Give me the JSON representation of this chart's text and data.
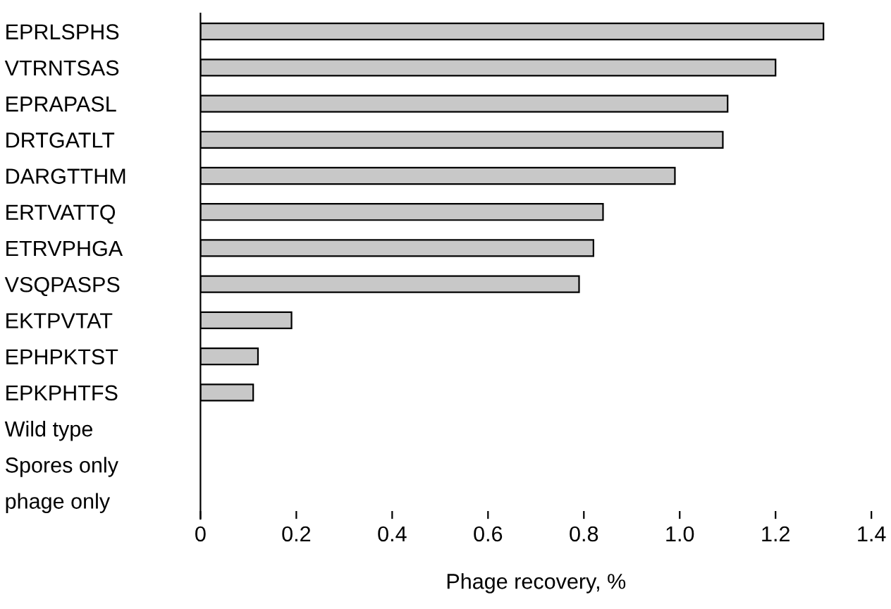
{
  "chart_data": {
    "type": "bar",
    "orientation": "horizontal",
    "xlabel": "Phage recovery, %",
    "categories": [
      "EPRLSPHS",
      "VTRNTSAS",
      "EPRAPASL",
      "DRTGATLT",
      "DARGTTHM",
      "ERTVATTQ",
      "ETRVPHGA",
      "VSQPASPS",
      "EKTPVTAT",
      "EPHPKTST",
      "EPKPHTFS",
      "Wild type",
      "Spores only",
      "phage only"
    ],
    "values": [
      1.3,
      1.2,
      1.1,
      1.09,
      0.99,
      0.84,
      0.82,
      0.79,
      0.19,
      0.12,
      0.11,
      0,
      0,
      0
    ],
    "color": "#c8c8c8",
    "xlim": [
      0,
      1.4
    ],
    "xticks": [
      0,
      {
        "value": 0.2,
        "label": "0.2"
      },
      {
        "value": 0.4,
        "label": "0.4"
      },
      {
        "value": 0.6,
        "label": "0.6"
      },
      {
        "value": 0.8,
        "label": "0.8"
      },
      {
        "value": 1.0,
        "label": "1.0"
      },
      {
        "value": 1.2,
        "label": "1.2"
      },
      {
        "value": 1.4,
        "label": "1.4"
      }
    ],
    "grid": false,
    "legend": false
  }
}
